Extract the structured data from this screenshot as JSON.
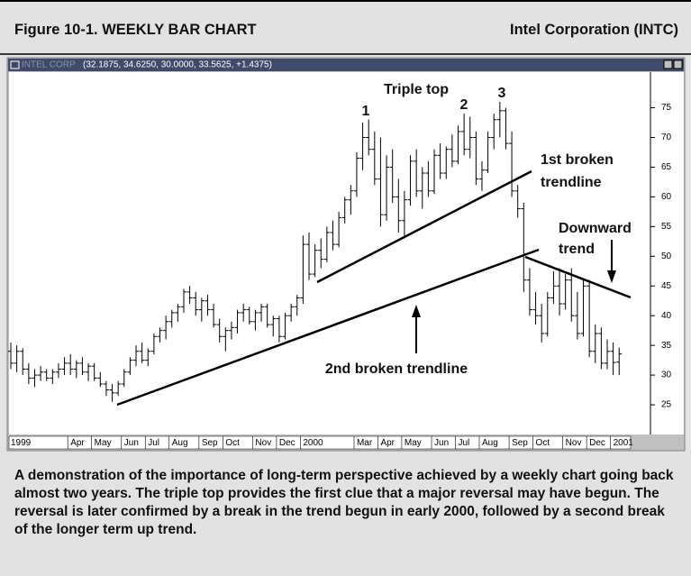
{
  "header": {
    "figure": "Figure 10-1. WEEKLY BAR CHART",
    "company": "Intel Corporation (INTC)"
  },
  "chart_data": {
    "type": "ohlc",
    "window_title": "INTEL CORP",
    "quote": "(32.1875, 34.6250, 30.0000, 33.5625, +1.4375)",
    "categories": [
      "1999",
      null,
      null,
      null,
      null,
      null,
      null,
      null,
      null,
      null,
      "Apr",
      null,
      null,
      null,
      "May",
      null,
      null,
      null,
      null,
      "Jun",
      null,
      null,
      null,
      "Jul",
      null,
      null,
      null,
      "Aug",
      null,
      null,
      null,
      null,
      "Sep",
      null,
      null,
      null,
      "Oct",
      null,
      null,
      null,
      null,
      "Nov",
      null,
      null,
      null,
      "Dec",
      null,
      null,
      null,
      "2000",
      null,
      null,
      null,
      null,
      null,
      null,
      null,
      null,
      "Mar",
      null,
      null,
      null,
      "Apr",
      null,
      null,
      null,
      "May",
      null,
      null,
      null,
      null,
      "Jun",
      null,
      null,
      null,
      "Jul",
      null,
      null,
      null,
      "Aug",
      null,
      null,
      null,
      null,
      "Sep",
      null,
      null,
      null,
      "Oct",
      null,
      null,
      null,
      null,
      "Nov",
      null,
      null,
      null,
      "Dec",
      null,
      null,
      null,
      "2001",
      null
    ],
    "open": [
      34,
      32,
      34,
      31,
      29.5,
      30,
      30.5,
      29.5,
      30.5,
      31,
      32,
      31,
      32,
      30.5,
      31.5,
      29.5,
      28.5,
      27.5,
      27,
      28.5,
      30.5,
      32.5,
      34,
      32.5,
      34,
      36.5,
      37.5,
      39,
      40.5,
      41.5,
      44,
      43,
      41,
      42.5,
      41,
      38.5,
      36.5,
      37.5,
      38,
      40.5,
      41,
      39,
      40.5,
      41.5,
      38.5,
      39.5,
      36.5,
      40,
      41.5,
      43,
      52,
      47,
      51,
      49.5,
      54,
      52,
      56.5,
      59.5,
      61,
      66.5,
      70,
      68,
      63,
      57,
      65,
      60,
      56,
      59.5,
      66,
      61,
      64,
      61,
      67,
      64,
      68,
      66,
      71,
      68,
      70,
      63,
      64.5,
      70,
      73,
      74.5,
      69,
      61,
      58,
      46,
      41,
      40,
      37,
      43,
      45,
      42,
      46,
      40,
      37,
      45,
      34,
      37,
      32,
      34,
      32.1875
    ],
    "high": [
      35.5,
      35,
      34.5,
      32,
      31,
      31.5,
      31,
      31,
      32,
      33,
      33.5,
      32.5,
      33,
      32,
      32,
      30.5,
      29,
      28.5,
      29,
      31,
      33,
      35,
      35.5,
      34.5,
      37,
      38,
      40,
      41,
      42,
      44.5,
      45,
      44,
      43,
      43.5,
      42,
      39.5,
      38,
      39,
      41,
      42,
      41.5,
      41,
      42,
      42,
      40,
      40,
      40.5,
      42,
      43.5,
      53.5,
      54,
      52,
      53,
      55,
      56,
      57.5,
      60,
      62,
      67.5,
      72.5,
      73,
      71,
      70,
      67,
      68,
      63,
      61,
      67,
      68,
      65,
      66,
      68,
      69,
      68.5,
      70.5,
      72,
      74,
      73.5,
      71,
      66,
      71,
      74,
      76,
      75,
      71,
      62,
      59,
      48,
      44,
      42,
      44,
      47.5,
      48,
      47,
      48,
      44,
      46,
      46,
      38.5,
      38,
      36,
      35.5,
      34.625
    ],
    "low": [
      31,
      30.5,
      30,
      28.5,
      28,
      29,
      29,
      28.5,
      29.5,
      30,
      30,
      29.5,
      30,
      29,
      29,
      28,
      26.5,
      25.5,
      26.5,
      28,
      30,
      31.5,
      32,
      31.5,
      33.5,
      35.5,
      36,
      38,
      39,
      40.5,
      42,
      40,
      39,
      40,
      38,
      35.5,
      34,
      36,
      37,
      39,
      38.5,
      37.5,
      39,
      38,
      36.5,
      35.5,
      36,
      39,
      40,
      42,
      46,
      46.5,
      48,
      49,
      51,
      51.5,
      55.5,
      57,
      60,
      64.5,
      67,
      62,
      55,
      56,
      59,
      54,
      53,
      58.5,
      60,
      58,
      60,
      60.5,
      63,
      63,
      65,
      65.5,
      67,
      66.5,
      62,
      61,
      64,
      68,
      70,
      68,
      60,
      56.5,
      44,
      40,
      38.5,
      35.5,
      36.5,
      42,
      40,
      41,
      39,
      36,
      36.5,
      33,
      32,
      31,
      31,
      30,
      30
    ],
    "close": [
      32,
      34,
      31,
      29.5,
      30,
      30.5,
      29.5,
      30.5,
      31,
      32,
      31,
      32,
      30.5,
      31.5,
      29.5,
      28.5,
      27.5,
      27,
      28.5,
      30.5,
      32.5,
      34,
      32.5,
      34,
      36.5,
      37.5,
      39,
      40.5,
      41.5,
      44,
      43,
      41,
      42.5,
      41,
      38.5,
      36.5,
      37.5,
      38,
      40.5,
      41,
      39,
      40.5,
      41.5,
      38.5,
      39.5,
      36.5,
      40,
      41.5,
      43,
      52,
      47,
      51,
      49.5,
      54,
      52,
      56.5,
      59.5,
      61,
      66.5,
      70,
      68,
      63,
      57,
      65,
      60,
      56,
      59.5,
      66,
      61,
      64,
      61,
      67,
      64,
      68,
      66,
      71,
      68,
      70,
      63,
      64.5,
      70,
      73,
      74.5,
      69,
      61,
      58,
      46,
      41,
      40,
      37,
      43,
      45,
      42,
      46,
      40,
      37,
      45,
      34,
      37,
      32,
      34,
      32.125,
      33.5625
    ],
    "color": "#000000",
    "ylim": [
      20,
      81
    ],
    "yticks": [
      25,
      30,
      35,
      40,
      45,
      50,
      55,
      60,
      65,
      70,
      75
    ],
    "annotations": [
      "Triple top",
      "1",
      "2",
      "3",
      "1st broken",
      "trendline",
      "Downward",
      "trend",
      "2nd broken trendline"
    ]
  },
  "caption": "A demonstration of the importance of long-term perspective achieved by a weekly chart going back almost two years. The triple top provides the first clue that a major reversal may have begun. The reversal is later confirmed by a break in the trend begun in early 2000, followed by a second break of the longer term up trend."
}
